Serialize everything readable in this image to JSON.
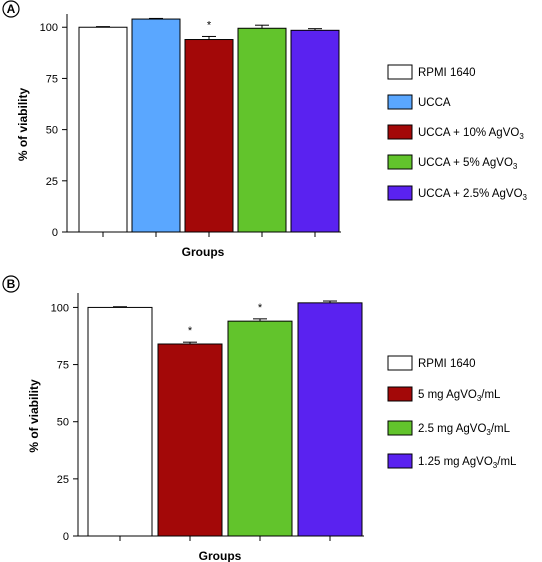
{
  "chart_data": [
    {
      "type": "bar",
      "panel_label": "A",
      "xlabel": "Groups",
      "ylabel": "% of viability",
      "ylim": [
        0,
        105
      ],
      "yticks": [
        0,
        25,
        50,
        75,
        100
      ],
      "grid": false,
      "legend_position": "right",
      "categories": [
        "RPMI 1640",
        "UCCA",
        "UCCA + 10% AgVO3",
        "UCCA + 5% AgVO3",
        "UCCA + 2.5% AgVO3"
      ],
      "legend": [
        {
          "text": "RPMI 1640",
          "sub": "",
          "tail": ""
        },
        {
          "text": "UCCA",
          "sub": "",
          "tail": ""
        },
        {
          "text": "UCCA + 10% AgVO",
          "sub": "3",
          "tail": ""
        },
        {
          "text": "UCCA + 5% AgVO",
          "sub": "3",
          "tail": ""
        },
        {
          "text": "UCCA + 2.5% AgVO",
          "sub": "3",
          "tail": ""
        }
      ],
      "values": [
        100,
        104,
        94,
        99.5,
        98.5
      ],
      "errors": [
        0.3,
        0.3,
        1.5,
        1.5,
        0.8
      ],
      "significance": [
        "",
        "",
        "*",
        "",
        ""
      ],
      "colors": [
        "#ffffff",
        "#5aa7ff",
        "#a30808",
        "#62c42c",
        "#5a22f0"
      ]
    },
    {
      "type": "bar",
      "panel_label": "B",
      "xlabel": "Groups",
      "ylabel": "% of viability",
      "ylim": [
        0,
        105
      ],
      "yticks": [
        0,
        25,
        50,
        75,
        100
      ],
      "grid": false,
      "legend_position": "right",
      "categories": [
        "RPMI 1640",
        "5 mg AgVO3/mL",
        "2.5 mg AgVO3/mL",
        "1.25 mg AgVO3/mL"
      ],
      "legend": [
        {
          "text": "RPMI 1640",
          "sub": "",
          "tail": ""
        },
        {
          "text": "5 mg AgVO",
          "sub": "3",
          "tail": "/mL"
        },
        {
          "text": "2.5 mg AgVO",
          "sub": "3",
          "tail": "/mL"
        },
        {
          "text": "1.25 mg AgVO",
          "sub": "3",
          "tail": "/mL"
        }
      ],
      "values": [
        100,
        84,
        94,
        102
      ],
      "errors": [
        0.3,
        0.8,
        1.0,
        0.8
      ],
      "significance": [
        "",
        "*",
        "*",
        ""
      ],
      "colors": [
        "#ffffff",
        "#a30808",
        "#62c42c",
        "#5a22f0"
      ]
    }
  ]
}
